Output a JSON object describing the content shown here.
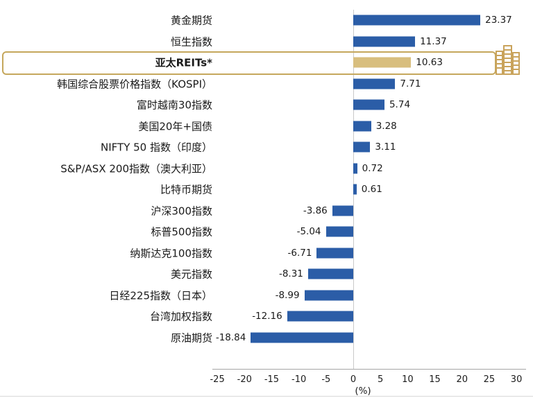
{
  "chart_data": {
    "type": "bar",
    "orientation": "horizontal",
    "categories": [
      "黄金期货",
      "恒生指数",
      "亚太REITs*",
      "韩国综合股票价格指数（KOSPI）",
      "富时越南30指数",
      "美国20年+国债",
      "NIFTY 50 指数（印度）",
      "S&P/ASX 200指数（澳大利亚）",
      "比特币期货",
      "沪深300指数",
      "标普500指数",
      "纳斯达克100指数",
      "美元指数",
      "日经225指数（日本）",
      "台湾加权指数",
      "原油期货"
    ],
    "values": [
      23.37,
      11.37,
      10.63,
      7.71,
      5.74,
      3.28,
      3.11,
      0.72,
      0.61,
      -3.86,
      -5.04,
      -6.71,
      -8.31,
      -8.99,
      -12.16,
      -18.84
    ],
    "value_labels": [
      "23.37",
      "11.37",
      "10.63",
      "7.71",
      "5.74",
      "3.28",
      "3.11",
      "0.72",
      "0.61",
      "-3.86",
      "-5.04",
      "-6.71",
      "-8.31",
      "-8.99",
      "-12.16",
      "-18.84"
    ],
    "highlight_index": 2,
    "highlight_category": "亚太REITs*",
    "xlabel": "(%)",
    "xlim": [
      -25,
      30
    ],
    "xticks": [
      -25,
      -20,
      -15,
      -10,
      -5,
      0,
      5,
      10,
      15,
      20,
      25,
      30
    ],
    "legend": "none",
    "grid": "off",
    "colors": {
      "bar_blue": "#2B5DA7",
      "bar_gold": "#D8BE7E",
      "highlight_border": "#C5A75C",
      "axis_line": "#A6A6A6",
      "zero_line": "#C9C9C9",
      "building_icon": "#C9A35B"
    }
  },
  "icons": {
    "building": "building-icon"
  }
}
